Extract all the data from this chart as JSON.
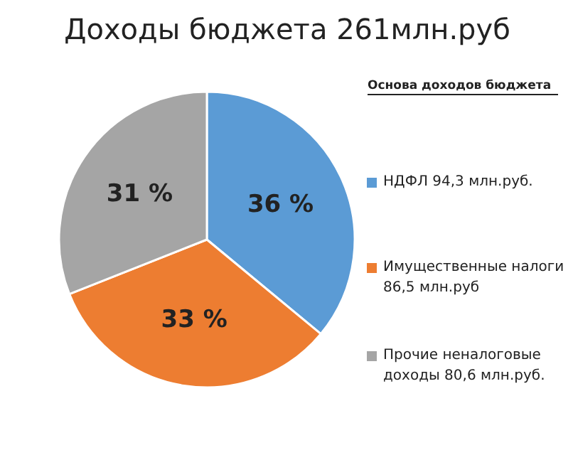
{
  "chart_data": {
    "type": "pie",
    "title": "Доходы бюджета 261млн.руб",
    "legend_title": "Основа доходов бюджета",
    "categories": [
      "НДФЛ 94,3 млн.руб.",
      "Имущественные налоги 86,5 млн.руб",
      "Прочие неналоговые доходы 80,6 млн.руб."
    ],
    "values": [
      36,
      33,
      31
    ],
    "colors": [
      "#5b9bd5",
      "#ed7d31",
      "#a5a5a5"
    ],
    "value_labels": [
      "36 %",
      "33 %",
      "31 %"
    ],
    "legend": "right"
  }
}
